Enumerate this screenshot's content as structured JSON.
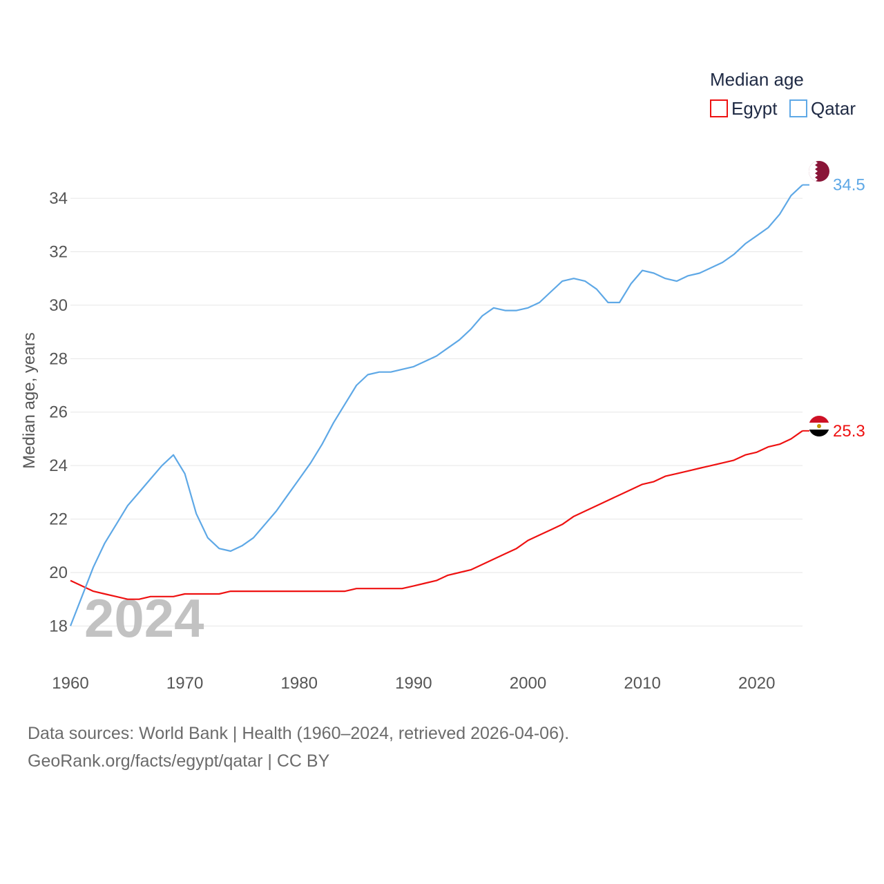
{
  "chart_data": {
    "type": "line",
    "title": "",
    "legend_title": "Median age",
    "ylabel": "Median age, years",
    "xlabel": "",
    "xlim": [
      1960,
      2024
    ],
    "ylim": [
      16.9,
      35.5
    ],
    "x_ticks": [
      1960,
      1970,
      1980,
      1990,
      2000,
      2010,
      2020
    ],
    "y_ticks": [
      18,
      20,
      22,
      24,
      26,
      28,
      30,
      32,
      34
    ],
    "grid": true,
    "legend_position": "top-right",
    "year_label": "2024",
    "x": [
      1960,
      1961,
      1962,
      1963,
      1964,
      1965,
      1966,
      1967,
      1968,
      1969,
      1970,
      1971,
      1972,
      1973,
      1974,
      1975,
      1976,
      1977,
      1978,
      1979,
      1980,
      1981,
      1982,
      1983,
      1984,
      1985,
      1986,
      1987,
      1988,
      1989,
      1990,
      1991,
      1992,
      1993,
      1994,
      1995,
      1996,
      1997,
      1998,
      1999,
      2000,
      2001,
      2002,
      2003,
      2004,
      2005,
      2006,
      2007,
      2008,
      2009,
      2010,
      2011,
      2012,
      2013,
      2014,
      2015,
      2016,
      2017,
      2018,
      2019,
      2020,
      2021,
      2022,
      2023,
      2024
    ],
    "series": [
      {
        "name": "Egypt",
        "color": "#ee1111",
        "end_label": "25.3",
        "values": [
          19.7,
          19.5,
          19.3,
          19.2,
          19.1,
          19.0,
          19.0,
          19.1,
          19.1,
          19.1,
          19.2,
          19.2,
          19.2,
          19.2,
          19.3,
          19.3,
          19.3,
          19.3,
          19.3,
          19.3,
          19.3,
          19.3,
          19.3,
          19.3,
          19.3,
          19.4,
          19.4,
          19.4,
          19.4,
          19.4,
          19.5,
          19.6,
          19.7,
          19.9,
          20.0,
          20.1,
          20.3,
          20.5,
          20.7,
          20.9,
          21.2,
          21.4,
          21.6,
          21.8,
          22.1,
          22.3,
          22.5,
          22.7,
          22.9,
          23.1,
          23.3,
          23.4,
          23.6,
          23.7,
          23.8,
          23.9,
          24.0,
          24.1,
          24.2,
          24.4,
          24.5,
          24.7,
          24.8,
          25.0,
          25.3
        ]
      },
      {
        "name": "Qatar",
        "color": "#5ea8e6",
        "end_label": "34.5",
        "values": [
          18.0,
          19.1,
          20.2,
          21.1,
          21.8,
          22.5,
          23.0,
          23.5,
          24.0,
          24.4,
          23.7,
          22.2,
          21.3,
          20.9,
          20.8,
          21.0,
          21.3,
          21.8,
          22.3,
          22.9,
          23.5,
          24.1,
          24.8,
          25.6,
          26.3,
          27.0,
          27.4,
          27.5,
          27.5,
          27.6,
          27.7,
          27.9,
          28.1,
          28.4,
          28.7,
          29.1,
          29.6,
          29.9,
          29.8,
          29.8,
          29.9,
          30.1,
          30.5,
          30.9,
          31.0,
          30.9,
          30.6,
          30.1,
          30.1,
          30.8,
          31.3,
          31.2,
          31.0,
          30.9,
          31.1,
          31.2,
          31.4,
          31.6,
          31.9,
          32.3,
          32.6,
          32.9,
          33.4,
          34.1,
          34.5
        ]
      }
    ],
    "flags": [
      {
        "country": "Qatar",
        "icon": "qatar-flag-icon",
        "colors": [
          "#ffffff",
          "#8a1538"
        ]
      },
      {
        "country": "Egypt",
        "icon": "egypt-flag-icon",
        "colors": [
          "#ce1126",
          "#ffffff",
          "#000000",
          "#c09300"
        ]
      }
    ]
  },
  "footer": {
    "line1": "Data sources: World Bank | Health (1960–2024, retrieved 2026-04-06).",
    "line2": "GeoRank.org/facts/egypt/qatar | CC BY"
  }
}
